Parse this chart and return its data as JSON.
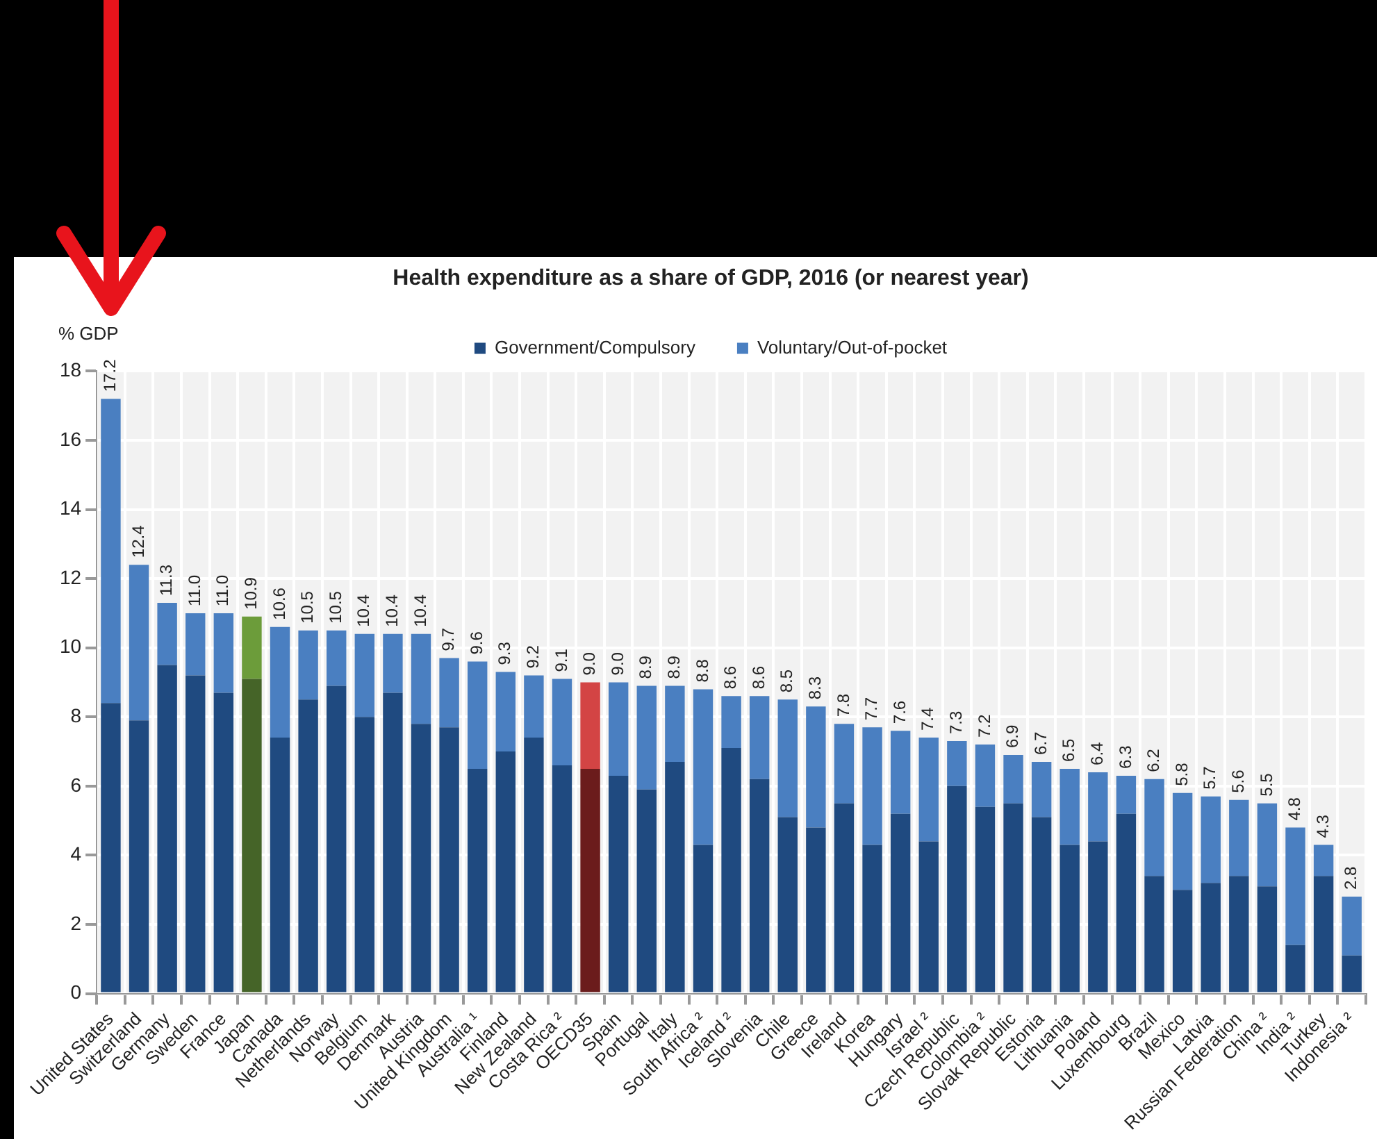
{
  "chart_data": {
    "type": "bar",
    "title": "Health expenditure as a share of GDP, 2016 (or nearest year)",
    "ylabel": "% GDP",
    "stacked": true,
    "grid": true,
    "legend": "top",
    "ylim": [
      0,
      18
    ],
    "yticks": [
      0,
      2,
      4,
      6,
      8,
      10,
      12,
      14,
      16,
      18
    ],
    "categories": [
      "United States",
      "Switzerland",
      "Germany",
      "Sweden",
      "France",
      "Japan",
      "Canada",
      "Netherlands",
      "Norway",
      "Belgium",
      "Denmark",
      "Austria",
      "United Kingdom",
      "Australia ¹",
      "Finland",
      "New Zealand",
      "Costa Rica ²",
      "OECD35",
      "Spain",
      "Portugal",
      "Italy",
      "South Africa ²",
      "Iceland ²",
      "Slovenia",
      "Chile",
      "Greece",
      "Ireland",
      "Korea",
      "Hungary",
      "Israel ²",
      "Czech Republic",
      "Colombia ²",
      "Slovak Republic",
      "Estonia",
      "Lithuania",
      "Poland",
      "Luxembourg",
      "Brazil",
      "Mexico",
      "Latvia",
      "Russian Federation",
      "China ²",
      "India ²",
      "Turkey",
      "Indonesia ²"
    ],
    "series": [
      {
        "name": "Government/Compulsory",
        "color": "#1f4a80",
        "colors": [
          "#1f4a80",
          "#1f4a80",
          "#1f4a80",
          "#1f4a80",
          "#1f4a80",
          "#456428",
          "#1f4a80",
          "#1f4a80",
          "#1f4a80",
          "#1f4a80",
          "#1f4a80",
          "#1f4a80",
          "#1f4a80",
          "#1f4a80",
          "#1f4a80",
          "#1f4a80",
          "#1f4a80",
          "#6b1c1c",
          "#1f4a80",
          "#1f4a80",
          "#1f4a80",
          "#1f4a80",
          "#1f4a80",
          "#1f4a80",
          "#1f4a80",
          "#1f4a80",
          "#1f4a80",
          "#1f4a80",
          "#1f4a80",
          "#1f4a80",
          "#1f4a80",
          "#1f4a80",
          "#1f4a80",
          "#1f4a80",
          "#1f4a80",
          "#1f4a80",
          "#1f4a80",
          "#1f4a80",
          "#1f4a80",
          "#1f4a80",
          "#1f4a80",
          "#1f4a80",
          "#1f4a80",
          "#1f4a80",
          "#1f4a80"
        ],
        "values": [
          8.4,
          7.9,
          9.5,
          9.2,
          8.7,
          9.1,
          7.4,
          8.5,
          8.9,
          8.0,
          8.7,
          7.8,
          7.7,
          6.5,
          7.0,
          7.4,
          6.6,
          6.5,
          6.3,
          5.9,
          6.7,
          4.3,
          7.1,
          6.2,
          5.1,
          4.8,
          5.5,
          4.3,
          5.2,
          4.4,
          6.0,
          5.4,
          5.5,
          5.1,
          4.3,
          4.4,
          5.2,
          3.4,
          3.0,
          3.2,
          3.4,
          3.1,
          1.4,
          3.4,
          1.1
        ]
      },
      {
        "name": "Voluntary/Out-of-pocket",
        "color": "#4a7fc1",
        "colors": [
          "#4a7fc1",
          "#4a7fc1",
          "#4a7fc1",
          "#4a7fc1",
          "#4a7fc1",
          "#6c9c3a",
          "#4a7fc1",
          "#4a7fc1",
          "#4a7fc1",
          "#4a7fc1",
          "#4a7fc1",
          "#4a7fc1",
          "#4a7fc1",
          "#4a7fc1",
          "#4a7fc1",
          "#4a7fc1",
          "#4a7fc1",
          "#d34444",
          "#4a7fc1",
          "#4a7fc1",
          "#4a7fc1",
          "#4a7fc1",
          "#4a7fc1",
          "#4a7fc1",
          "#4a7fc1",
          "#4a7fc1",
          "#4a7fc1",
          "#4a7fc1",
          "#4a7fc1",
          "#4a7fc1",
          "#4a7fc1",
          "#4a7fc1",
          "#4a7fc1",
          "#4a7fc1",
          "#4a7fc1",
          "#4a7fc1",
          "#4a7fc1",
          "#4a7fc1",
          "#4a7fc1",
          "#4a7fc1",
          "#4a7fc1",
          "#4a7fc1",
          "#4a7fc1",
          "#4a7fc1",
          "#4a7fc1"
        ],
        "values": [
          8.8,
          4.5,
          1.8,
          1.8,
          2.3,
          1.8,
          3.2,
          2.0,
          1.6,
          2.4,
          1.7,
          2.6,
          2.0,
          3.1,
          2.3,
          1.8,
          2.5,
          2.5,
          2.7,
          3.0,
          2.2,
          4.5,
          1.5,
          2.4,
          3.4,
          3.5,
          2.3,
          3.4,
          2.4,
          3.0,
          1.3,
          1.8,
          1.4,
          1.6,
          2.2,
          2.0,
          1.1,
          2.8,
          2.8,
          2.5,
          2.2,
          2.4,
          3.4,
          0.9,
          1.7
        ]
      }
    ],
    "totals": [
      "17.2",
      "12.4",
      "11.3",
      "11.0",
      "11.0",
      "10.9",
      "10.6",
      "10.5",
      "10.5",
      "10.4",
      "10.4",
      "10.4",
      "9.7",
      "9.6",
      "9.3",
      "9.2",
      "9.1",
      "9.0",
      "9.0",
      "8.9",
      "8.9",
      "8.8",
      "8.6",
      "8.6",
      "8.5",
      "8.3",
      "7.8",
      "7.7",
      "7.6",
      "7.4",
      "7.3",
      "7.2",
      "6.9",
      "6.7",
      "6.5",
      "6.4",
      "6.3",
      "6.2",
      "5.8",
      "5.7",
      "5.6",
      "5.5",
      "4.8",
      "4.3",
      "2.8"
    ]
  }
}
